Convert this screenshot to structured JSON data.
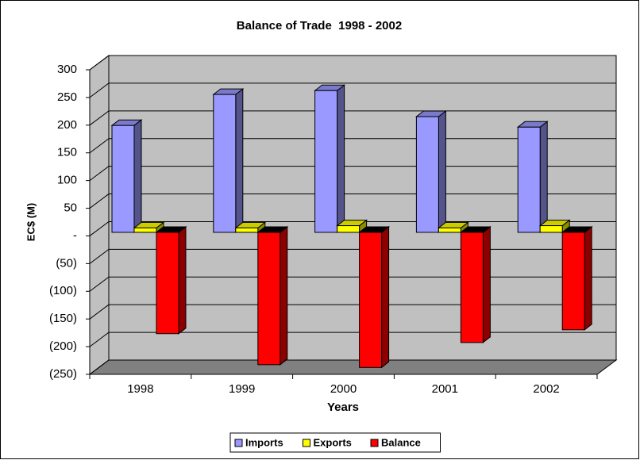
{
  "chart_data": {
    "type": "bar",
    "title": "Balance of Trade  1998 - 2002",
    "x_label": "Years",
    "y_label": "EC$ (M)",
    "categories": [
      "1998",
      "1999",
      "2000",
      "2001",
      "2002"
    ],
    "series": [
      {
        "name": "Imports",
        "color": "#9999ff",
        "values": [
          193,
          249,
          256,
          209,
          190
        ]
      },
      {
        "name": "Exports",
        "color": "#ffff00",
        "values": [
          8,
          8,
          12,
          8,
          12
        ]
      },
      {
        "name": "Balance",
        "color": "#ff0000",
        "values": [
          -183,
          -239,
          -244,
          -199,
          -176
        ]
      }
    ],
    "ylim": [
      -250,
      300
    ],
    "yticks": [
      {
        "value": -250,
        "label": "(250)"
      },
      {
        "value": -200,
        "label": "(200)"
      },
      {
        "value": -150,
        "label": "(150)"
      },
      {
        "value": -100,
        "label": "(100)"
      },
      {
        "value": -50,
        "label": "(50)"
      },
      {
        "value": 0,
        "label": "-"
      },
      50,
      100,
      150,
      200,
      250,
      300
    ],
    "grid": true,
    "legend": "bottom"
  }
}
